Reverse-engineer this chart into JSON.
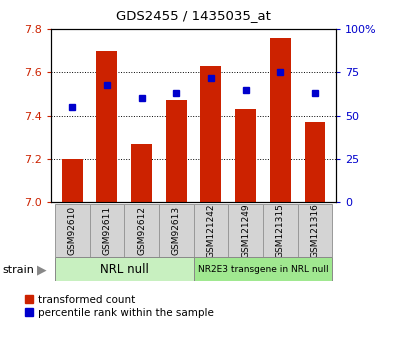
{
  "title": "GDS2455 / 1435035_at",
  "samples": [
    "GSM92610",
    "GSM92611",
    "GSM92612",
    "GSM92613",
    "GSM121242",
    "GSM121249",
    "GSM121315",
    "GSM121316"
  ],
  "transformed_count": [
    7.2,
    7.7,
    7.27,
    7.47,
    7.63,
    7.43,
    7.76,
    7.37
  ],
  "percentile_rank": [
    55,
    68,
    60,
    63,
    72,
    65,
    75,
    63
  ],
  "ylim_left": [
    7.0,
    7.8
  ],
  "ylim_right": [
    0,
    100
  ],
  "yticks_left": [
    7.0,
    7.2,
    7.4,
    7.6,
    7.8
  ],
  "yticks_right": [
    0,
    25,
    50,
    75,
    100
  ],
  "bar_color": "#cc2200",
  "dot_color": "#0000cc",
  "group1_label": "NRL null",
  "group2_label": "NR2E3 transgene in NRL null",
  "group1_indices": [
    0,
    1,
    2,
    3
  ],
  "group2_indices": [
    4,
    5,
    6,
    7
  ],
  "group1_color": "#c8f0c0",
  "group2_color": "#a0e890",
  "bar_label_color": "#cc2200",
  "right_axis_color": "#0000cc",
  "bar_width": 0.6,
  "legend_red": "transformed count",
  "legend_blue": "percentile rank within the sample",
  "strain_label": "strain",
  "bg_color": "#ffffff",
  "plot_bg": "#ffffff",
  "grid_yticks": [
    7.2,
    7.4,
    7.6
  ]
}
